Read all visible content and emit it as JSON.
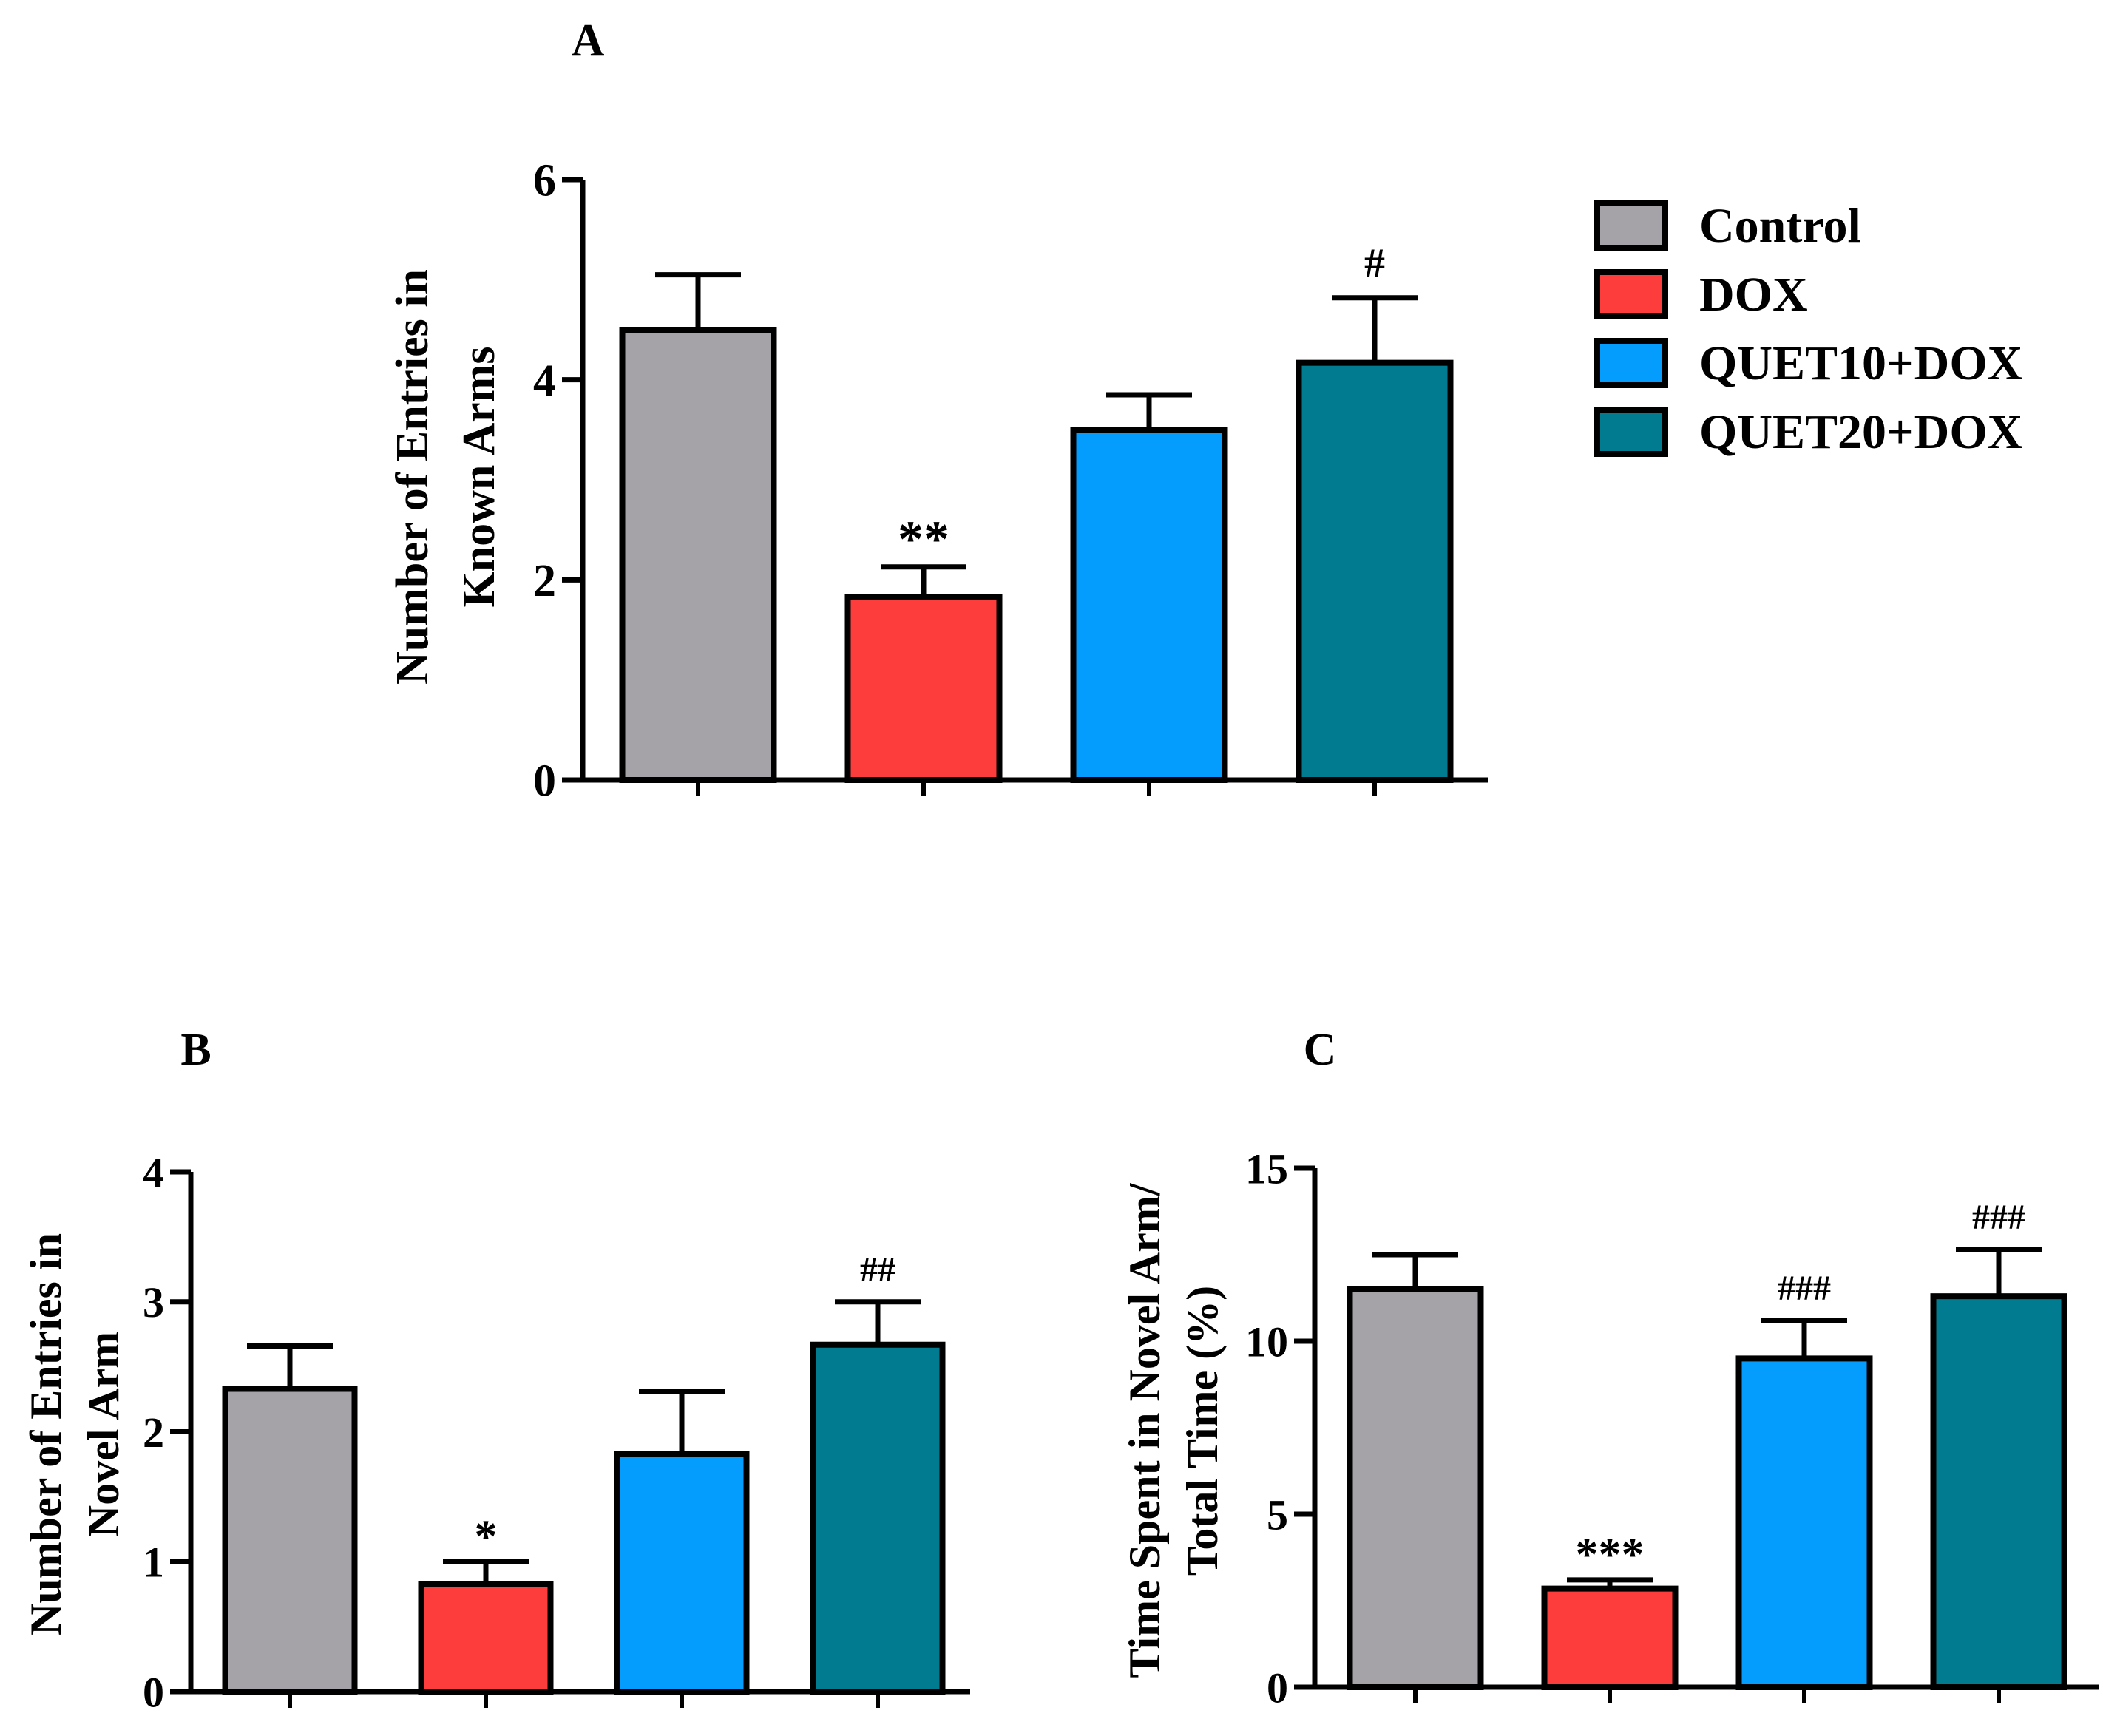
{
  "legend": {
    "entries": [
      {
        "label": "Control",
        "color": "#a5a3a8"
      },
      {
        "label": "DOX",
        "color": "#fd3c3c"
      },
      {
        "label": "QUET10+DOX",
        "color": "#049dfd"
      },
      {
        "label": "QUET20+DOX",
        "color": "#007b90"
      }
    ]
  },
  "chart_data": [
    {
      "panel": "A",
      "type": "bar",
      "title": "A",
      "ylabel": [
        "Number of Entries in",
        "Known Arms"
      ],
      "xlabel": "",
      "ylim": [
        0,
        6
      ],
      "yticks": [
        0,
        2,
        4,
        6
      ],
      "categories": [
        "Control",
        "DOX",
        "QUET10+DOX",
        "QUET20+DOX"
      ],
      "values": [
        4.5,
        1.83,
        3.5,
        4.17
      ],
      "errors": [
        0.55,
        0.3,
        0.35,
        0.65
      ],
      "annotations": [
        "",
        "**",
        "",
        "#"
      ]
    },
    {
      "panel": "B",
      "type": "bar",
      "title": "B",
      "ylabel": [
        "Number of Entries in",
        "Novel Arm"
      ],
      "xlabel": "",
      "ylim": [
        0,
        4
      ],
      "yticks": [
        0,
        1,
        2,
        3,
        4
      ],
      "categories": [
        "Control",
        "DOX",
        "QUET10+DOX",
        "QUET20+DOX"
      ],
      "values": [
        2.33,
        0.83,
        1.83,
        2.67
      ],
      "errors": [
        0.33,
        0.17,
        0.48,
        0.33
      ],
      "annotations": [
        "",
        "*",
        "",
        "##"
      ]
    },
    {
      "panel": "C",
      "type": "bar",
      "title": "C",
      "ylabel": [
        "Time Spent in Novel Arm/",
        "Total Time (%)"
      ],
      "xlabel": "",
      "ylim": [
        0,
        15
      ],
      "yticks": [
        0,
        5,
        10,
        15
      ],
      "categories": [
        "Control",
        "DOX",
        "QUET10+DOX",
        "QUET20+DOX"
      ],
      "values": [
        11.5,
        2.85,
        9.5,
        11.3
      ],
      "errors": [
        1.0,
        0.25,
        1.1,
        1.35
      ],
      "annotations": [
        "",
        "***",
        "###",
        "###"
      ]
    }
  ]
}
